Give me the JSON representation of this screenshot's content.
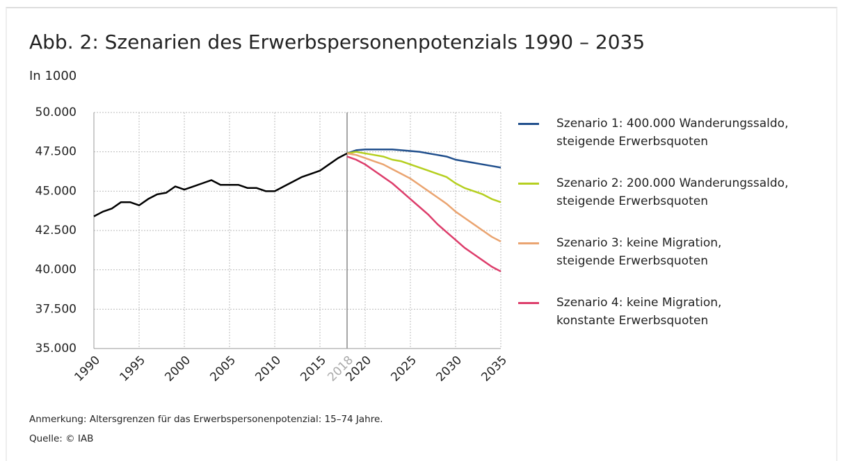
{
  "chart_data": {
    "type": "line",
    "title": "Abb. 2: Szenarien des Erwerbspersonenpotenzials 1990 – 2035",
    "subtitle": "In 1000",
    "notes": [
      "Anmerkung: Altersgrenzen für das Erwerbspersonenpotenzial: 15–74 Jahre.",
      "Quelle: © IAB"
    ],
    "x": [
      1990,
      1991,
      1992,
      1993,
      1994,
      1995,
      1996,
      1997,
      1998,
      1999,
      2000,
      2001,
      2002,
      2003,
      2004,
      2005,
      2006,
      2007,
      2008,
      2009,
      2010,
      2011,
      2012,
      2013,
      2014,
      2015,
      2016,
      2017,
      2018,
      2019,
      2020,
      2021,
      2022,
      2023,
      2024,
      2025,
      2026,
      2027,
      2028,
      2029,
      2030,
      2031,
      2032,
      2033,
      2034,
      2035
    ],
    "xlim": [
      1990,
      2035
    ],
    "xticks": [
      1990,
      1995,
      2000,
      2005,
      2010,
      2015,
      2018,
      2020,
      2025,
      2030,
      2035
    ],
    "reference_x": 2018,
    "ylim": [
      35000,
      50000
    ],
    "yticks": [
      {
        "value": 35000,
        "label": "35.000"
      },
      {
        "value": 37500,
        "label": "37.500"
      },
      {
        "value": 40000,
        "label": "40.000"
      },
      {
        "value": 42500,
        "label": "42.500"
      },
      {
        "value": 45000,
        "label": "45.000"
      },
      {
        "value": 47500,
        "label": "47.500"
      },
      {
        "value": 50000,
        "label": "50.000"
      }
    ],
    "grid": true,
    "legend": "right",
    "series": [
      {
        "color": "#000000",
        "values": [
          43400,
          43700,
          43900,
          44300,
          44300,
          44100,
          44500,
          44800,
          44900,
          45300,
          45100,
          45300,
          45500,
          45700,
          45400,
          45400,
          45400,
          45200,
          45200,
          45000,
          45000,
          45300,
          45600,
          45900,
          46100,
          46300,
          46700,
          47100,
          47400,
          null,
          null,
          null,
          null,
          null,
          null,
          null,
          null,
          null,
          null,
          null,
          null,
          null,
          null,
          null,
          null,
          null
        ]
      },
      {
        "name": "Szenario 1: 400.000 Wanderungssaldo,\nsteigende Erwerbsquoten",
        "color": "#1f4e8c",
        "values": [
          null,
          null,
          null,
          null,
          null,
          null,
          null,
          null,
          null,
          null,
          null,
          null,
          null,
          null,
          null,
          null,
          null,
          null,
          null,
          null,
          null,
          null,
          null,
          null,
          null,
          null,
          null,
          null,
          47400,
          47600,
          47650,
          47650,
          47650,
          47650,
          47600,
          47550,
          47500,
          47400,
          47300,
          47200,
          47000,
          46900,
          46800,
          46700,
          46600,
          46500
        ]
      },
      {
        "name": "Szenario 2: 200.000 Wanderungssaldo,\nsteigende Erwerbsquoten",
        "color": "#b5cf1f",
        "values": [
          null,
          null,
          null,
          null,
          null,
          null,
          null,
          null,
          null,
          null,
          null,
          null,
          null,
          null,
          null,
          null,
          null,
          null,
          null,
          null,
          null,
          null,
          null,
          null,
          null,
          null,
          null,
          null,
          47400,
          47500,
          47400,
          47300,
          47200,
          47000,
          46900,
          46700,
          46500,
          46300,
          46100,
          45900,
          45500,
          45200,
          45000,
          44800,
          44500,
          44300
        ]
      },
      {
        "name": "Szenario 3: keine Migration,\nsteigende Erwerbsquoten",
        "color": "#eaa470",
        "values": [
          null,
          null,
          null,
          null,
          null,
          null,
          null,
          null,
          null,
          null,
          null,
          null,
          null,
          null,
          null,
          null,
          null,
          null,
          null,
          null,
          null,
          null,
          null,
          null,
          null,
          null,
          null,
          null,
          47400,
          47300,
          47100,
          46900,
          46700,
          46400,
          46100,
          45800,
          45400,
          45000,
          44600,
          44200,
          43700,
          43300,
          42900,
          42500,
          42100,
          41800
        ]
      },
      {
        "name": "Szenario 4: keine Migration,\nkonstante Erwerbsquoten",
        "color": "#dd3d6b",
        "values": [
          null,
          null,
          null,
          null,
          null,
          null,
          null,
          null,
          null,
          null,
          null,
          null,
          null,
          null,
          null,
          null,
          null,
          null,
          null,
          null,
          null,
          null,
          null,
          null,
          null,
          null,
          null,
          null,
          47200,
          47000,
          46700,
          46300,
          45900,
          45500,
          45000,
          44500,
          44000,
          43500,
          42900,
          42400,
          41900,
          41400,
          41000,
          40600,
          40200,
          39900
        ]
      }
    ]
  }
}
